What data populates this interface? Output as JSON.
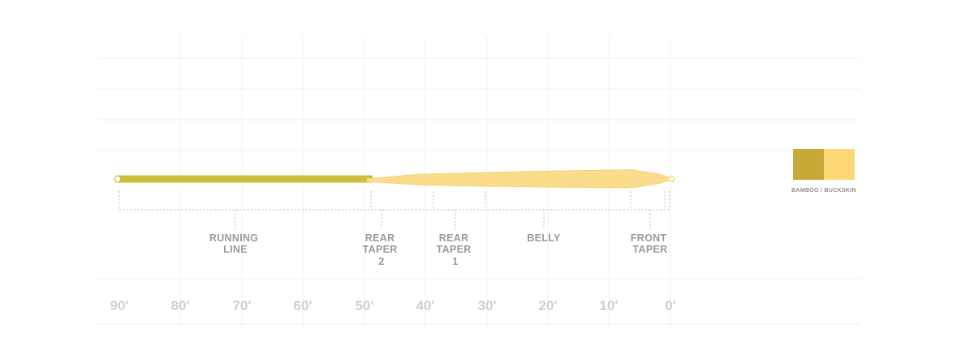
{
  "colors": {
    "running_line": "#CDBD38",
    "head": "#FADC8A",
    "head_edge": "#F4CF6E",
    "swatch_bamboo": "#C6A936",
    "swatch_buckskin": "#FBD873"
  },
  "segments": [
    {
      "id": "running-line",
      "lines": [
        "RUNNING",
        "LINE"
      ]
    },
    {
      "id": "rear-taper-2",
      "lines": [
        "REAR",
        "TAPER",
        "2"
      ]
    },
    {
      "id": "rear-taper-1",
      "lines": [
        "REAR",
        "TAPER",
        "1"
      ]
    },
    {
      "id": "belly",
      "lines": [
        "BELLY"
      ]
    },
    {
      "id": "front-taper",
      "lines": [
        "FRONT",
        "TAPER"
      ]
    }
  ],
  "axis": {
    "ticks": [
      "90′",
      "80′",
      "70′",
      "60′",
      "50′",
      "40′",
      "30′",
      "20′",
      "10′",
      "0′"
    ]
  },
  "legend": {
    "label": "BAMBOO / BUCKSKIN"
  }
}
